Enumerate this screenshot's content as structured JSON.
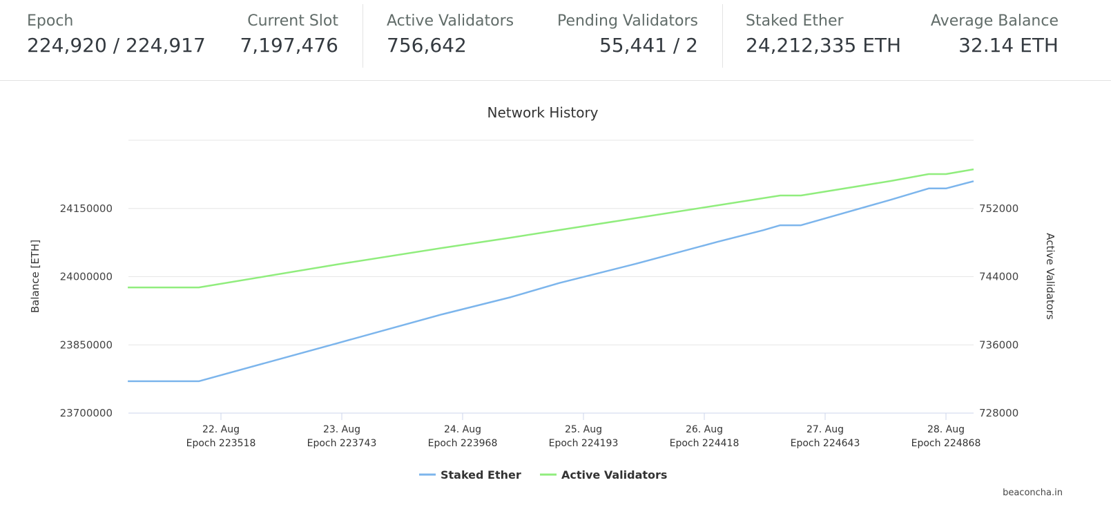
{
  "stats": {
    "epoch": {
      "label": "Epoch",
      "value": "224,920 / 224,917"
    },
    "current_slot": {
      "label": "Current Slot",
      "value": "7,197,476"
    },
    "active_validators": {
      "label": "Active Validators",
      "value": "756,642"
    },
    "pending_validators": {
      "label": "Pending Validators",
      "value": "55,441 / 2"
    },
    "staked_ether": {
      "label": "Staked Ether",
      "value": "24,212,335 ETH"
    },
    "average_balance": {
      "label": "Average Balance",
      "value": "32.14 ETH"
    }
  },
  "chart_data": {
    "type": "line",
    "title": "Network History",
    "ylabel": "Balance [ETH]",
    "y2label": "Active Validators",
    "ylim": [
      23700000,
      24300000
    ],
    "y2lim": [
      728000,
      760000
    ],
    "yticks": [
      "23700000",
      "23850000",
      "24000000",
      "24150000"
    ],
    "y2ticks": [
      "728000",
      "736000",
      "744000",
      "752000"
    ],
    "xticks": [
      {
        "date": "22. Aug",
        "epoch": "Epoch 223518"
      },
      {
        "date": "23. Aug",
        "epoch": "Epoch 223743"
      },
      {
        "date": "24. Aug",
        "epoch": "Epoch 223968"
      },
      {
        "date": "25. Aug",
        "epoch": "Epoch 224193"
      },
      {
        "date": "26. Aug",
        "epoch": "Epoch 224418"
      },
      {
        "date": "27. Aug",
        "epoch": "Epoch 224643"
      },
      {
        "date": "28. Aug",
        "epoch": "Epoch 224868"
      }
    ],
    "grid": true,
    "legend": "bottom-center",
    "series": [
      {
        "name": "Staked Ether",
        "color": "#7cb5ec",
        "axis": "left",
        "x": [
          "21 Aug 05:30",
          "21 Aug 19:36",
          "22 Aug 22:54",
          "23 Aug 19:53",
          "24 Aug 09:36",
          "24 Aug 19:12",
          "25 Aug 10:17",
          "26 Aug 02:45",
          "26 Aug 11:40",
          "26 Aug 15:05",
          "26 Aug 19:12",
          "27 Aug 13:02",
          "27 Aug 20:34",
          "28 Aug 00:00",
          "28 Aug 05:29"
        ],
        "values": [
          23770000,
          23770000,
          23853000,
          23917000,
          23955000,
          23986000,
          24028000,
          24077000,
          24102000,
          24113000,
          24113000,
          24169000,
          24194000,
          24194000,
          24210000
        ]
      },
      {
        "name": "Active Validators",
        "color": "#90ed7d",
        "axis": "right",
        "x": [
          "21 Aug 05:30",
          "21 Aug 19:36",
          "22 Aug 22:54",
          "23 Aug 19:53",
          "24 Aug 09:36",
          "24 Aug 19:12",
          "25 Aug 10:17",
          "26 Aug 02:45",
          "26 Aug 15:05",
          "26 Aug 19:12",
          "27 Aug 13:02",
          "27 Aug 20:34",
          "28 Aug 00:00",
          "28 Aug 05:29"
        ],
        "values": [
          742740,
          742740,
          745420,
          747360,
          748580,
          749470,
          750850,
          752380,
          753520,
          753520,
          755220,
          756030,
          756030,
          756590
        ]
      }
    ]
  },
  "watermark": "beaconcha.in"
}
